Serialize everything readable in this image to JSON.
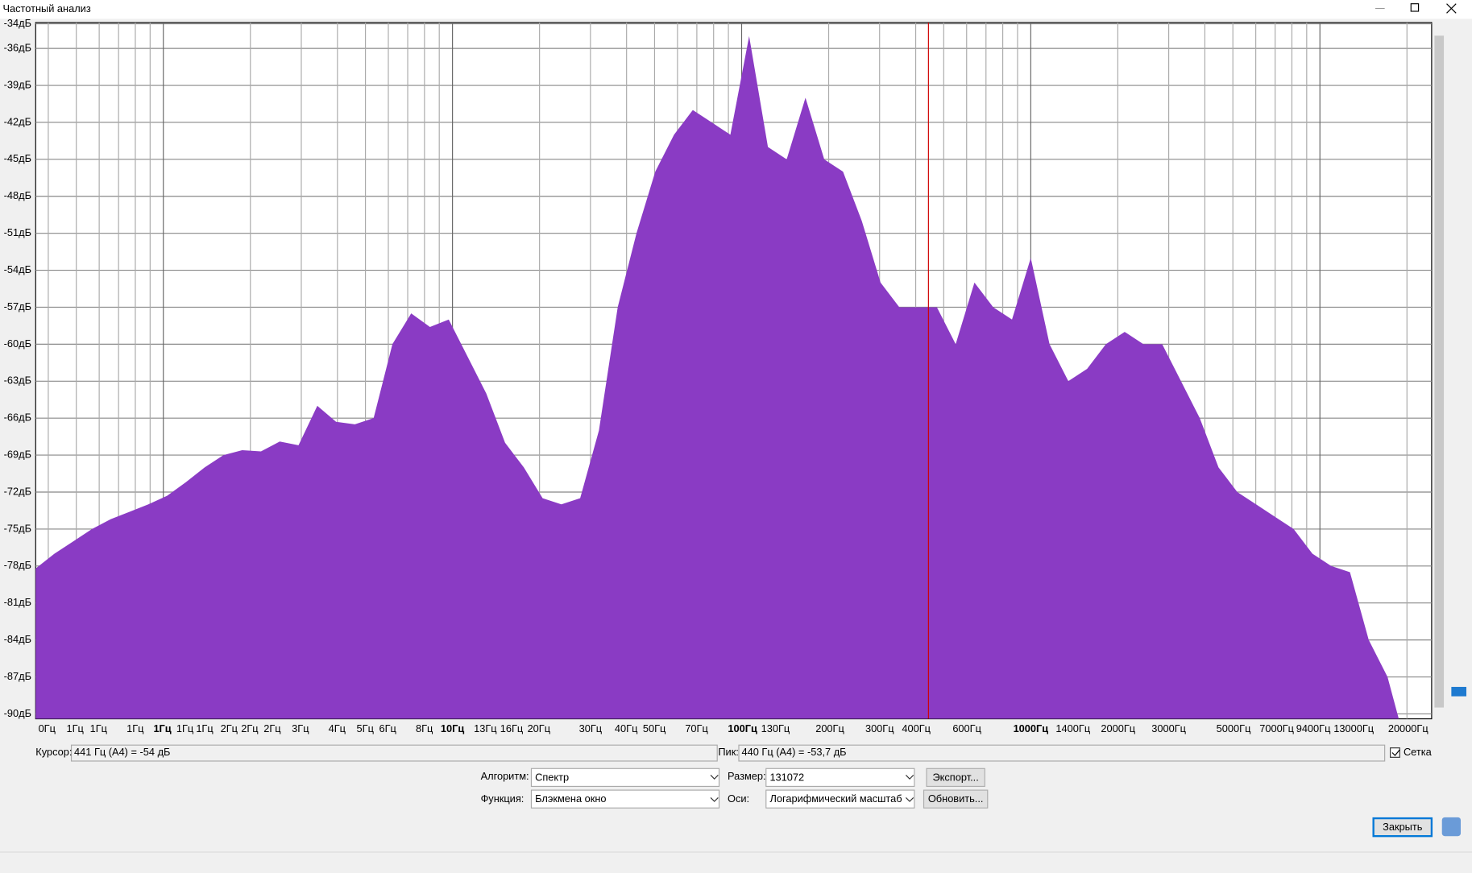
{
  "window": {
    "title": "Частотный анализ"
  },
  "spectrum": {
    "ylim": [
      -90.4,
      -33.9
    ],
    "yticks": [
      {
        "value": -34,
        "label": "-34дБ"
      },
      {
        "value": -36,
        "label": "-36дБ"
      },
      {
        "value": -39,
        "label": "-39дБ"
      },
      {
        "value": -42,
        "label": "-42дБ"
      },
      {
        "value": -45,
        "label": "-45дБ"
      },
      {
        "value": -48,
        "label": "-48дБ"
      },
      {
        "value": -51,
        "label": "-51дБ"
      },
      {
        "value": -54,
        "label": "-54дБ"
      },
      {
        "value": -57,
        "label": "-57дБ"
      },
      {
        "value": -60,
        "label": "-60дБ"
      },
      {
        "value": -63,
        "label": "-63дБ"
      },
      {
        "value": -66,
        "label": "-66дБ"
      },
      {
        "value": -69,
        "label": "-69дБ"
      },
      {
        "value": -72,
        "label": "-72дБ"
      },
      {
        "value": -75,
        "label": "-75дБ"
      },
      {
        "value": -78,
        "label": "-78дБ"
      },
      {
        "value": -81,
        "label": "-81дБ"
      },
      {
        "value": -84,
        "label": "-84дБ"
      },
      {
        "value": -87,
        "label": "-87дБ"
      },
      {
        "value": -90,
        "label": "-90дБ"
      }
    ],
    "xlabels": [
      "0Гц",
      "1Гц",
      "1Гц",
      "1Гц",
      "1Гц",
      "1Гц",
      "1Гц",
      "2Гц",
      "2Гц",
      "2Гц",
      "3Гц",
      "4Гц",
      "5Гц",
      "6Гц",
      "8Гц",
      "10Гц",
      "13Гц",
      "16Гц",
      "20Гц",
      "30Гц",
      "40Гц",
      "50Гц",
      "70Гц",
      "100Гц",
      "130Гц",
      "200Гц",
      "300Гц",
      "400Гц",
      "600Гц",
      "1000Гц",
      "1400Гц",
      "2000Гц",
      "3000Гц",
      "5000Гц",
      "7000Гц",
      "9400Гц",
      "13000Гц",
      "20000Гц"
    ],
    "levels": [
      -78.2,
      -77,
      -76,
      -75,
      -74.2,
      -73.6,
      -73,
      -72.3,
      -71.2,
      -70,
      -69,
      -68.6,
      -68.7,
      -67.9,
      -68.2,
      -65,
      -66.3,
      -66.5,
      -66,
      -60,
      -57.5,
      -58.6,
      -58,
      -61,
      -64,
      -68,
      -70,
      -72.5,
      -73,
      -72.5,
      -67,
      -57,
      -51,
      -46,
      -43,
      -41,
      -42,
      -43,
      -35,
      -44,
      -45,
      -40,
      -45,
      -46,
      -50,
      -55,
      -57,
      -57,
      -57,
      -60,
      -55,
      -57,
      -58,
      -53,
      -60,
      -63,
      -62,
      -60,
      -59,
      -60,
      -60,
      -63,
      -66,
      -70,
      -72,
      -73,
      -74,
      -75,
      -77,
      -78,
      -78.5,
      -84,
      -87,
      -90.4
    ]
  },
  "status": {
    "cursor_label": "Курсор:",
    "cursor_value": "441 Гц (A4) = -54 дБ",
    "peak_label": "Пик:",
    "peak_value": "440 Гц (A4) = -53,7 дБ",
    "grid_label": "Сетка"
  },
  "controls": {
    "algorithm_label": "Алгоритм:",
    "algorithm": "Спектр",
    "size_label": "Размер:",
    "size": "131072",
    "export": "Экспорт...",
    "function_label": "Функция:",
    "function": "Блэкмена  окно",
    "axis_label": "Оси:",
    "axis": "Логарифмический масштаб",
    "refresh": "Обновить...",
    "close": "Закрыть"
  }
}
